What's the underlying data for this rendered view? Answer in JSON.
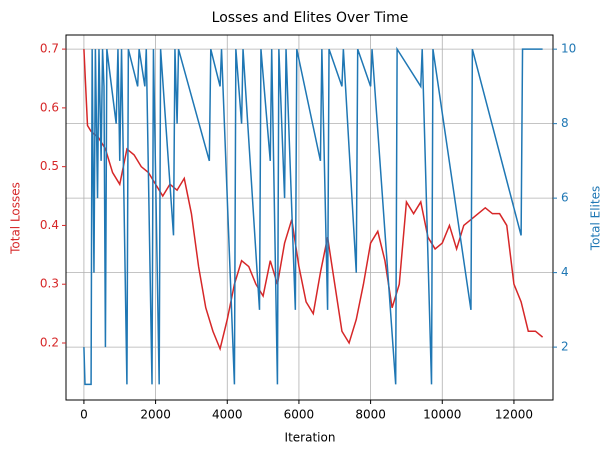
{
  "chart_data": {
    "type": "line",
    "title": "Losses and Elites Over Time",
    "x_label": "Iteration",
    "y_label": "Total Losses",
    "y2_label": "Total Elites",
    "grid": true,
    "xlim": [
      -500,
      13090
    ],
    "xticks": [
      0,
      2000,
      4000,
      6000,
      8000,
      10000,
      12000
    ],
    "ylim": [
      0.103,
      0.724
    ],
    "yticks": [
      0.2,
      0.3,
      0.4,
      0.5,
      0.6,
      0.7
    ],
    "y2lim": [
      0.58,
      10.38
    ],
    "y2ticks": [
      2,
      4,
      6,
      8,
      10
    ],
    "series": [
      {
        "name": "Total Losses",
        "color": "#d62728",
        "x": [
          0,
          100,
          200,
          400,
          600,
          800,
          1000,
          1200,
          1400,
          1600,
          1800,
          2000,
          2200,
          2400,
          2600,
          2800,
          3000,
          3200,
          3400,
          3600,
          3800,
          4000,
          4200,
          4400,
          4600,
          4800,
          5000,
          5200,
          5400,
          5600,
          5800,
          6000,
          6200,
          6400,
          6600,
          6800,
          7000,
          7200,
          7400,
          7600,
          7800,
          8000,
          8200,
          8400,
          8600,
          8800,
          9000,
          9200,
          9400,
          9600,
          9800,
          10000,
          10200,
          10400,
          10600,
          10800,
          11000,
          11200,
          11400,
          11600,
          11800,
          12000,
          12200,
          12400,
          12600,
          12800
        ],
        "values": [
          0.7,
          0.57,
          0.56,
          0.55,
          0.53,
          0.49,
          0.47,
          0.53,
          0.52,
          0.5,
          0.49,
          0.47,
          0.45,
          0.47,
          0.46,
          0.48,
          0.42,
          0.33,
          0.26,
          0.22,
          0.19,
          0.24,
          0.3,
          0.34,
          0.33,
          0.3,
          0.28,
          0.34,
          0.3,
          0.37,
          0.41,
          0.33,
          0.27,
          0.25,
          0.32,
          0.38,
          0.3,
          0.22,
          0.2,
          0.24,
          0.3,
          0.37,
          0.39,
          0.34,
          0.26,
          0.3,
          0.44,
          0.42,
          0.44,
          0.38,
          0.36,
          0.37,
          0.4,
          0.36,
          0.4,
          0.41,
          0.42,
          0.43,
          0.42,
          0.42,
          0.4,
          0.3,
          0.27,
          0.22,
          0.22,
          0.21
        ]
      },
      {
        "name": "Total Elites",
        "color": "#1f77b4",
        "axis": "y2",
        "x": [
          0,
          30,
          200,
          230,
          280,
          320,
          380,
          420,
          480,
          520,
          560,
          600,
          640,
          900,
          950,
          1000,
          1050,
          1200,
          1240,
          1500,
          1540,
          1700,
          1740,
          1900,
          1940,
          2100,
          2140,
          2500,
          2540,
          2600,
          2640,
          3500,
          3540,
          3800,
          3840,
          4200,
          4240,
          4400,
          4440,
          4900,
          4940,
          5200,
          5240,
          5400,
          5440,
          5600,
          5640,
          5900,
          5940,
          6600,
          6640,
          6800,
          6840,
          7200,
          7240,
          7600,
          7640,
          8000,
          8040,
          8700,
          8740,
          9400,
          9440,
          9700,
          9740,
          10800,
          10840,
          12200,
          12240,
          12800
        ],
        "values": [
          2,
          1,
          1,
          10,
          4,
          10,
          6,
          10,
          7,
          10,
          9,
          2,
          10,
          8,
          10,
          7,
          10,
          1,
          10,
          9,
          10,
          9,
          10,
          1,
          10,
          1,
          10,
          5,
          10,
          8,
          10,
          7,
          10,
          9,
          10,
          1,
          10,
          8,
          10,
          3,
          10,
          7,
          10,
          1,
          10,
          6,
          10,
          3,
          10,
          7,
          10,
          3,
          10,
          9,
          10,
          4,
          10,
          9,
          10,
          1,
          10,
          9,
          10,
          1,
          10,
          3,
          10,
          5,
          10,
          10
        ]
      }
    ]
  }
}
